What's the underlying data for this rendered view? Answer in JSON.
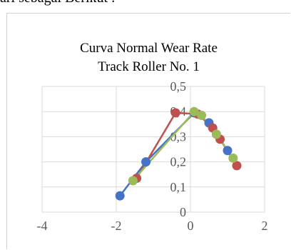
{
  "page_header_text": "ari sebagai Berikut :",
  "chart_data": {
    "type": "scatter",
    "title_lines": [
      "Curva Normal Wear Rate",
      "Track Roller No. 1"
    ],
    "xlabel": "",
    "ylabel": "",
    "xlim": [
      -4,
      2
    ],
    "ylim": [
      0,
      0.5
    ],
    "x_ticks": [
      -4,
      -2,
      0,
      2
    ],
    "x_tick_labels": [
      "-4",
      "-2",
      "0",
      "2"
    ],
    "y_ticks": [
      0,
      0.1,
      0.2,
      0.3,
      0.4,
      0.5
    ],
    "y_tick_labels": [
      "0",
      "0,1",
      "0,2",
      "0,3",
      "0,4",
      "0,5"
    ],
    "grid": true,
    "legend": "none",
    "series": [
      {
        "color": "#4472c4",
        "points": [
          [
            -1.9,
            0.065
          ],
          [
            -1.2,
            0.2
          ],
          [
            0.1,
            0.395
          ],
          [
            0.5,
            0.355
          ],
          [
            1.0,
            0.245
          ]
        ]
      },
      {
        "color": "#c0504d",
        "points": [
          [
            -1.45,
            0.135
          ],
          [
            -0.4,
            0.395
          ],
          [
            0.2,
            0.39
          ],
          [
            0.6,
            0.335
          ],
          [
            0.8,
            0.29
          ],
          [
            1.25,
            0.185
          ]
        ]
      },
      {
        "color": "#9bbb59",
        "points": [
          [
            -1.55,
            0.125
          ],
          [
            0.1,
            0.4
          ],
          [
            0.3,
            0.385
          ],
          [
            0.7,
            0.31
          ],
          [
            1.15,
            0.215
          ]
        ]
      }
    ]
  }
}
